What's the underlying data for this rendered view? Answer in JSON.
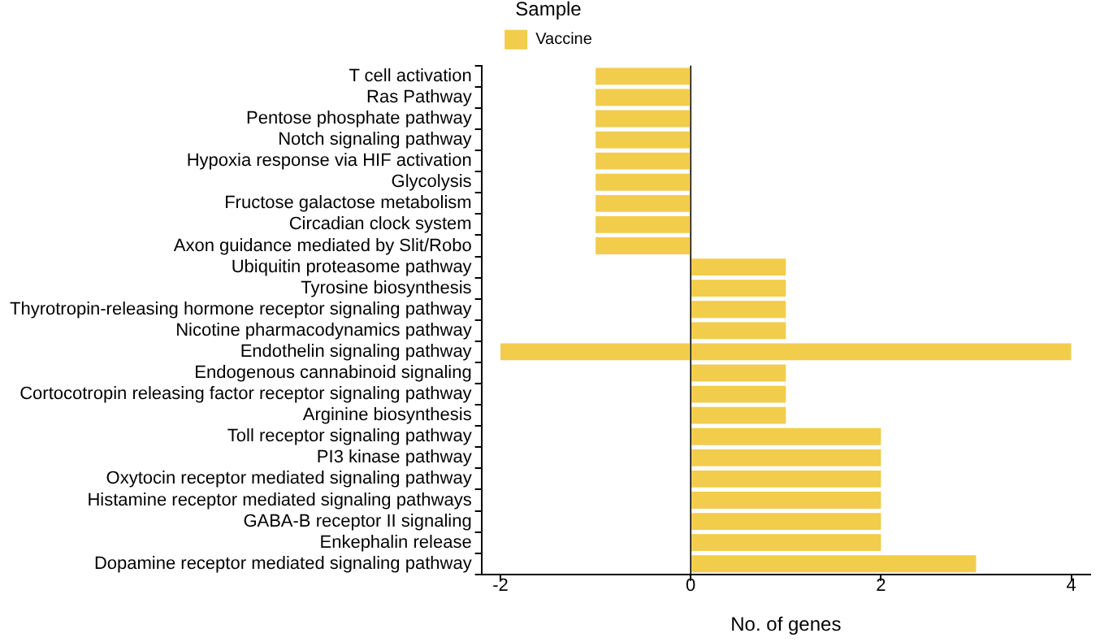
{
  "chart_data": {
    "type": "bar",
    "orientation": "horizontal",
    "stacked": true,
    "xlabel": "No. of genes",
    "legend_title": "Sample",
    "legend": "top",
    "categories": [
      "T cell activation",
      "Ras Pathway",
      "Pentose phosphate pathway",
      "Notch signaling pathway",
      "Hypoxia response via HIF activation",
      "Glycolysis",
      "Fructose galactose metabolism",
      "Circadian clock system",
      "Axon guidance mediated by Slit/Robo",
      "Ubiquitin proteasome pathway",
      "Tyrosine biosynthesis",
      "Thyrotropin-releasing hormone receptor signaling pathway",
      "Nicotine pharmacodynamics pathway",
      "Endothelin signaling pathway",
      "Endogenous cannabinoid signaling",
      "Cortocotropin releasing factor receptor signaling pathway",
      "Arginine biosynthesis",
      "Toll receptor signaling pathway",
      "PI3 kinase pathway",
      "Oxytocin receptor mediated signaling pathway",
      "Histamine receptor mediated signaling pathways",
      "GABA-B receptor II signaling",
      "Enkephalin release",
      "Dopamine receptor mediated signaling pathway"
    ],
    "series": [
      {
        "name": "Vaccine",
        "color": "#f2cc4b",
        "values": [
          -1,
          -1,
          -1,
          -1,
          -1,
          -1,
          -1,
          -1,
          -1,
          1,
          1,
          1,
          1,
          4,
          1,
          1,
          1,
          2,
          2,
          2,
          2,
          2,
          2,
          3
        ]
      },
      {
        "color": "#f2cc4b",
        "values": [
          null,
          null,
          null,
          null,
          null,
          null,
          null,
          null,
          null,
          null,
          null,
          null,
          null,
          -2,
          null,
          null,
          null,
          null,
          null,
          null,
          null,
          null,
          null,
          null
        ]
      }
    ],
    "xlim": [
      -2.2,
      4.2
    ],
    "xticks": [
      -2,
      0,
      2,
      4
    ],
    "grid": false,
    "ref_lines": [
      {
        "axis": "x",
        "value": 0
      }
    ]
  }
}
